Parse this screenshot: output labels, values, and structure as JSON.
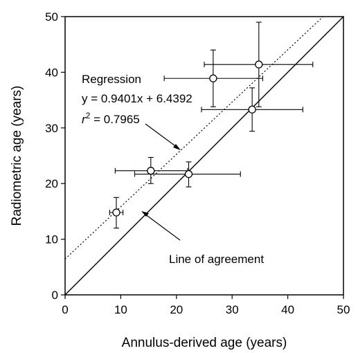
{
  "chart_data": {
    "type": "scatter",
    "xlabel": "Annulus-derived age (years)",
    "ylabel": "Radiometric age (years)",
    "xlim": [
      0,
      50
    ],
    "ylim": [
      0,
      50
    ],
    "x_ticks": [
      "0",
      "10",
      "20",
      "30",
      "40",
      "50"
    ],
    "y_ticks": [
      "0",
      "10",
      "20",
      "30",
      "40",
      "50"
    ],
    "grid": false,
    "points": [
      {
        "x": 9.2,
        "y": 14.8,
        "x_err": [
          8.0,
          10.4
        ],
        "y_err": [
          12.0,
          17.5
        ]
      },
      {
        "x": 15.4,
        "y": 22.3,
        "x_err": [
          9.0,
          22.0
        ],
        "y_err": [
          20.0,
          24.7
        ]
      },
      {
        "x": 22.2,
        "y": 21.7,
        "x_err": [
          12.5,
          31.5
        ],
        "y_err": [
          19.4,
          23.9
        ]
      },
      {
        "x": 26.6,
        "y": 38.9,
        "x_err": [
          17.8,
          35.5
        ],
        "y_err": [
          33.8,
          44.0
        ]
      },
      {
        "x": 33.6,
        "y": 33.3,
        "x_err": [
          24.5,
          42.7
        ],
        "y_err": [
          29.4,
          37.2
        ]
      },
      {
        "x": 34.8,
        "y": 41.4,
        "x_err": [
          25.0,
          44.5
        ],
        "y_err": [
          33.8,
          49.0
        ]
      }
    ],
    "regression": {
      "slope": 0.9401,
      "intercept": 6.4392,
      "style": "dotted"
    },
    "agreement_line": {
      "slope": 1,
      "intercept": 0,
      "style": "solid"
    },
    "annotations": {
      "regression_label": "Regression",
      "equation": "y = 0.9401x + 6.4392",
      "r2_symbol": "r",
      "r2_exp": "2",
      "r2_value": " = 0.7965",
      "agreement_label": "Line of agreement"
    }
  }
}
